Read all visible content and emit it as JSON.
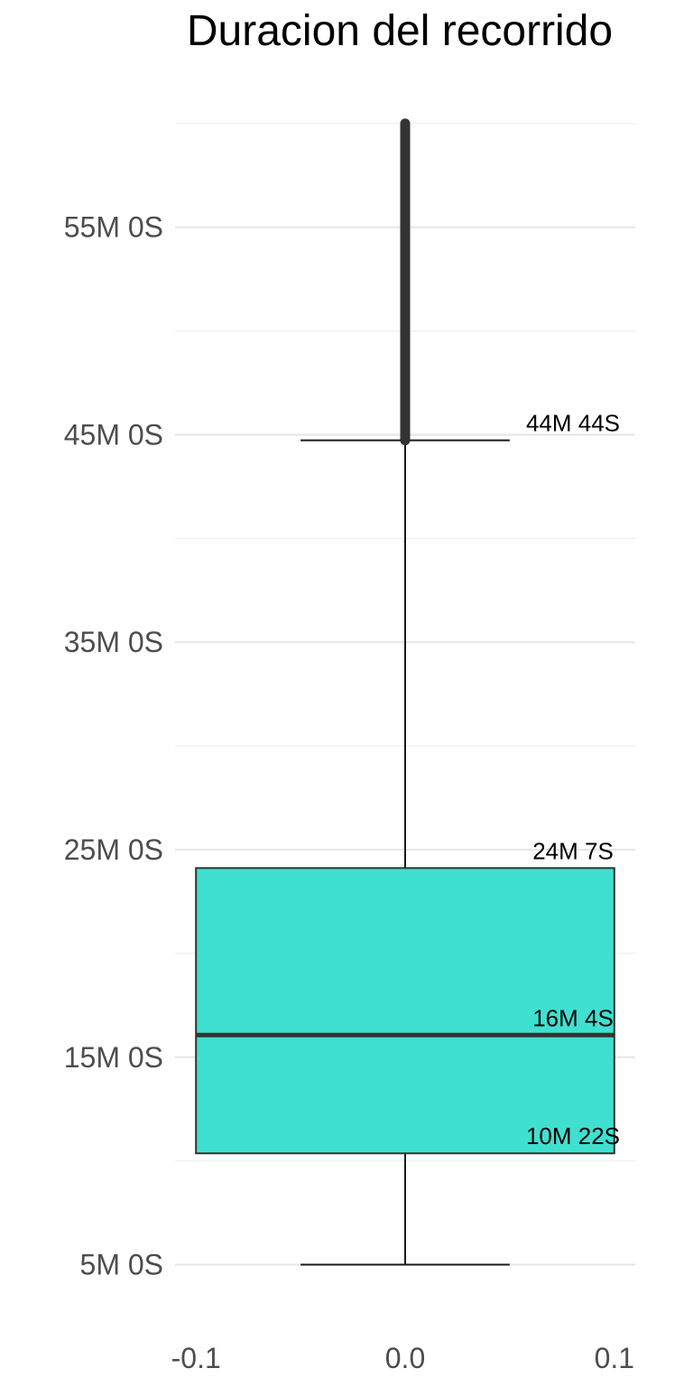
{
  "chart_data": {
    "type": "boxplot",
    "title": "Duracion del recorrido",
    "xlabel": "",
    "ylabel": "",
    "x_ticks": [
      -0.1,
      0.0,
      0.1
    ],
    "x_tick_labels": [
      "-0.1",
      "0.0",
      "0.1"
    ],
    "xlim": [
      -0.11,
      0.11
    ],
    "y_unit": "seconds",
    "ylim": [
      150,
      3670
    ],
    "y_ticks": [
      300,
      900,
      1500,
      2100,
      2700,
      3300
    ],
    "y_tick_labels": [
      "5M 0S",
      "15M 0S",
      "25M 0S",
      "35M 0S",
      "45M 0S",
      "55M 0S"
    ],
    "y_minor_gridlines": [
      600,
      1200,
      1800,
      2400,
      3000,
      3600
    ],
    "grid": true,
    "box": {
      "x_center": 0.0,
      "x_left": -0.1,
      "x_right": 0.1,
      "whisker_cap_left": -0.05,
      "whisker_cap_right": 0.05,
      "lower_whisker": 300,
      "q1": 622,
      "median": 964,
      "q3": 1447,
      "upper_whisker": 2684,
      "outliers_range": [
        2684,
        3600
      ],
      "fill": "#40E0D0",
      "stroke": "#333333"
    },
    "annotations": [
      {
        "text": "44M 44S",
        "value": 2684
      },
      {
        "text": "24M 7S",
        "value": 1447
      },
      {
        "text": "16M 4S",
        "value": 964
      },
      {
        "text": "10M 22S",
        "value": 622
      }
    ]
  }
}
